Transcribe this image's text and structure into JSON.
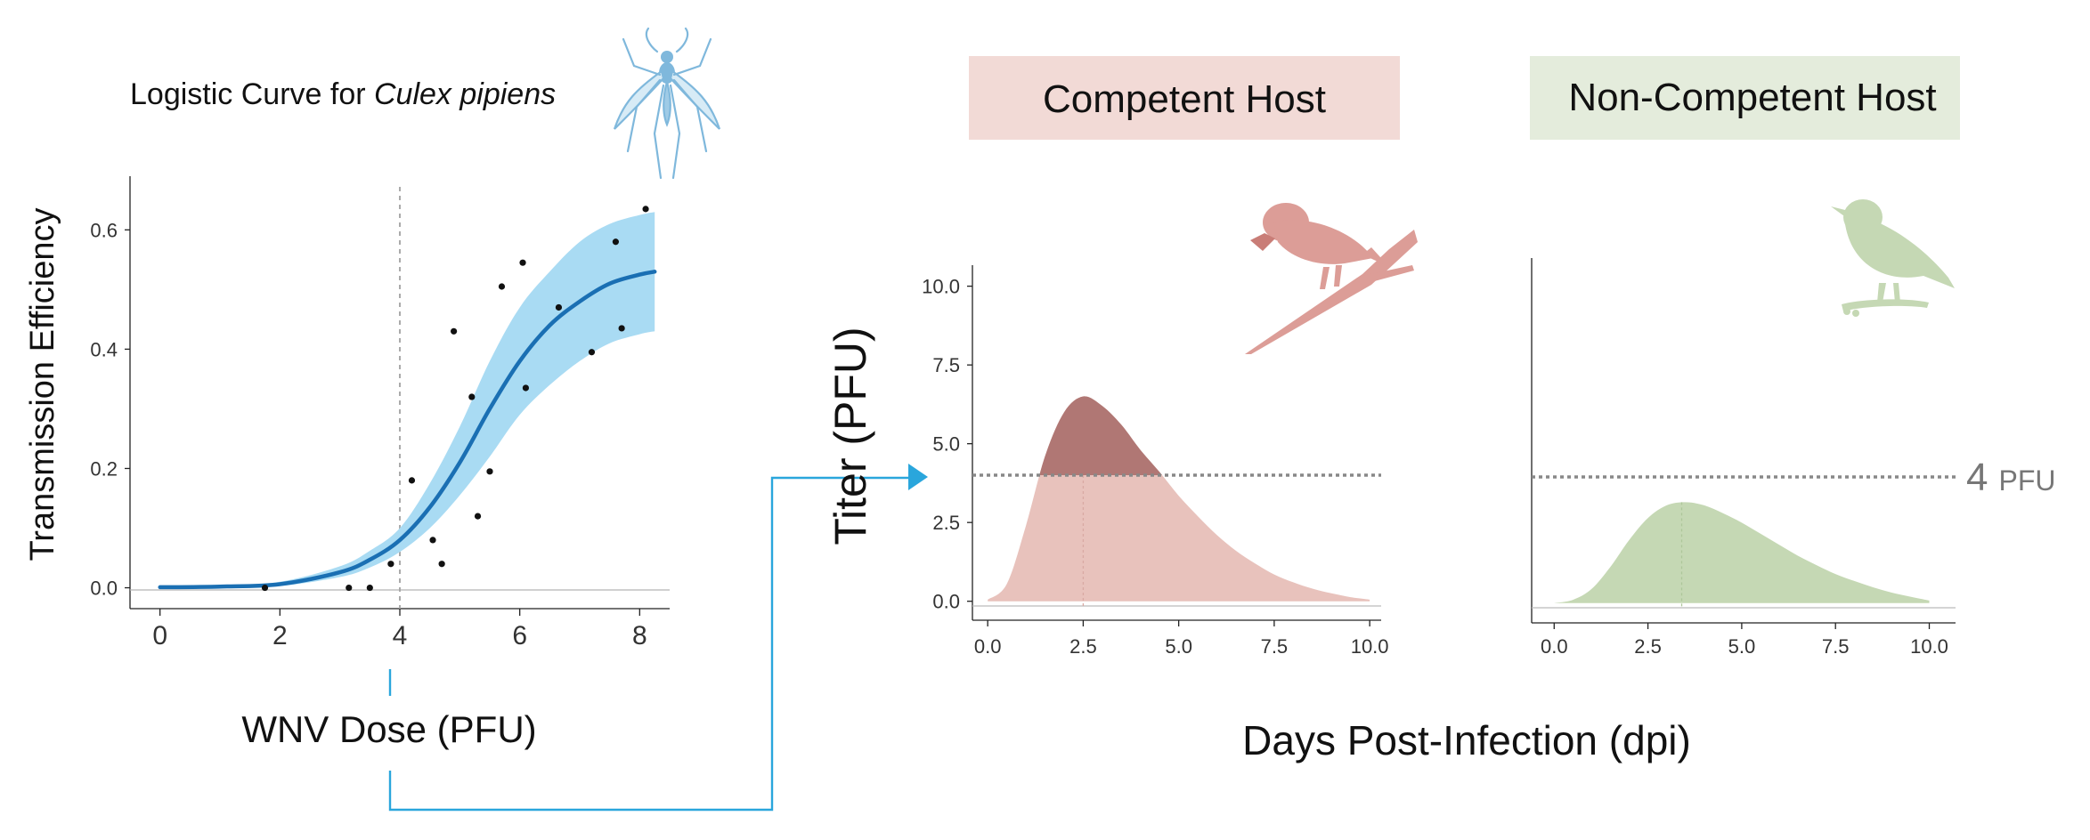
{
  "chart_data": [
    {
      "type": "line",
      "title_prefix": "Logistic Curve for ",
      "title_species": "Culex pipiens",
      "xlabel": "WNV Dose (PFU)",
      "ylabel": "Transmission Efficiency",
      "xlim": [
        -0.5,
        8.5
      ],
      "ylim": [
        -0.035,
        0.69
      ],
      "x_ticks": [
        0,
        2,
        4,
        6,
        8
      ],
      "y_ticks": [
        0.0,
        0.2,
        0.4,
        0.6
      ],
      "y_tick_labels": [
        "0.0",
        "0.2",
        "0.4",
        "0.6"
      ],
      "threshold_x": 4,
      "curve": {
        "x": [
          0,
          1,
          2,
          3,
          3.5,
          4,
          4.5,
          5,
          5.5,
          6,
          6.5,
          7,
          7.5,
          8,
          8.25
        ],
        "y": [
          0.001,
          0.002,
          0.006,
          0.026,
          0.047,
          0.08,
          0.135,
          0.21,
          0.3,
          0.38,
          0.44,
          0.48,
          0.51,
          0.525,
          0.53
        ],
        "lower": [
          0.0,
          0.0,
          0.003,
          0.018,
          0.034,
          0.06,
          0.1,
          0.155,
          0.22,
          0.29,
          0.34,
          0.38,
          0.41,
          0.425,
          0.43
        ],
        "upper": [
          0.002,
          0.004,
          0.01,
          0.036,
          0.062,
          0.1,
          0.175,
          0.27,
          0.38,
          0.47,
          0.53,
          0.58,
          0.61,
          0.625,
          0.63
        ]
      },
      "points": [
        {
          "x": 1.75,
          "y": 0.0
        },
        {
          "x": 3.15,
          "y": 0.0
        },
        {
          "x": 3.5,
          "y": 0.0
        },
        {
          "x": 3.85,
          "y": 0.04
        },
        {
          "x": 4.2,
          "y": 0.18
        },
        {
          "x": 4.55,
          "y": 0.08
        },
        {
          "x": 4.7,
          "y": 0.04
        },
        {
          "x": 4.9,
          "y": 0.43
        },
        {
          "x": 5.2,
          "y": 0.32
        },
        {
          "x": 5.3,
          "y": 0.12
        },
        {
          "x": 5.5,
          "y": 0.195
        },
        {
          "x": 5.7,
          "y": 0.505
        },
        {
          "x": 6.05,
          "y": 0.545
        },
        {
          "x": 6.1,
          "y": 0.335
        },
        {
          "x": 6.65,
          "y": 0.47
        },
        {
          "x": 7.2,
          "y": 0.395
        },
        {
          "x": 7.6,
          "y": 0.58
        },
        {
          "x": 7.7,
          "y": 0.435
        },
        {
          "x": 8.1,
          "y": 0.635
        }
      ],
      "colors": {
        "curve": "#1a6fb3",
        "band": "#a9dbf3",
        "points": "#111111",
        "threshold": "#aaaaaa"
      }
    },
    {
      "type": "area",
      "title": "Competent Host",
      "xlim": [
        -0.4,
        10.3
      ],
      "ylim": [
        -0.15,
        10.3
      ],
      "x_ticks": [
        0,
        2.5,
        5,
        7.5,
        10
      ],
      "x_tick_labels": [
        "0.0",
        "2.5",
        "5.0",
        "7.5",
        "10.0"
      ],
      "y_ticks": [
        0,
        2.5,
        5,
        7.5,
        10
      ],
      "y_tick_labels": [
        "0.0",
        "2.5",
        "5.0",
        "7.5",
        "10.0"
      ],
      "threshold": 4,
      "peak_x": 2.5,
      "curve": {
        "x": [
          0,
          0.5,
          1,
          1.5,
          2,
          2.5,
          3,
          3.5,
          4,
          4.5,
          5,
          5.5,
          6,
          6.5,
          7,
          7.5,
          8,
          8.5,
          9,
          9.5,
          10
        ],
        "y": [
          0.05,
          0.55,
          2.4,
          4.6,
          6.0,
          6.5,
          6.2,
          5.6,
          4.8,
          4.1,
          3.35,
          2.7,
          2.1,
          1.6,
          1.2,
          0.85,
          0.6,
          0.4,
          0.25,
          0.13,
          0.05
        ]
      },
      "colors": {
        "fill": "#e8c2bc",
        "above_threshold": "#b07774",
        "title_bg": "#f2dad6"
      }
    },
    {
      "type": "area",
      "title": "Non-Competent Host",
      "xlim": [
        -0.6,
        10.7
      ],
      "ylim": [
        -0.15,
        10.3
      ],
      "x_ticks": [
        0,
        2.5,
        5,
        7.5,
        10
      ],
      "x_tick_labels": [
        "0.0",
        "2.5",
        "5.0",
        "7.5",
        "10.0"
      ],
      "threshold": 4,
      "threshold_label_value": "4",
      "threshold_label_unit": "PFU",
      "peak_x": 3.4,
      "curve": {
        "x": [
          0,
          0.5,
          1,
          1.5,
          2,
          2.5,
          3,
          3.5,
          4,
          4.5,
          5,
          5.5,
          6,
          6.5,
          7,
          7.5,
          8,
          8.5,
          9,
          9.5,
          10
        ],
        "y": [
          0.0,
          0.1,
          0.45,
          1.15,
          2.0,
          2.7,
          3.1,
          3.2,
          3.1,
          2.85,
          2.55,
          2.2,
          1.85,
          1.5,
          1.2,
          0.92,
          0.7,
          0.5,
          0.33,
          0.2,
          0.08
        ]
      },
      "colors": {
        "fill": "#c5d8b4",
        "title_bg": "#e4ecdc"
      }
    }
  ],
  "shared": {
    "ylabel": "Titer (PFU)",
    "xlabel": "Days Post-Infection (dpi)"
  },
  "icons": [
    "mosquito-icon",
    "competent-bird-icon",
    "non-competent-bird-icon"
  ],
  "colors": {
    "connector": "#2aa6dc",
    "threshold_line": "#888888"
  }
}
